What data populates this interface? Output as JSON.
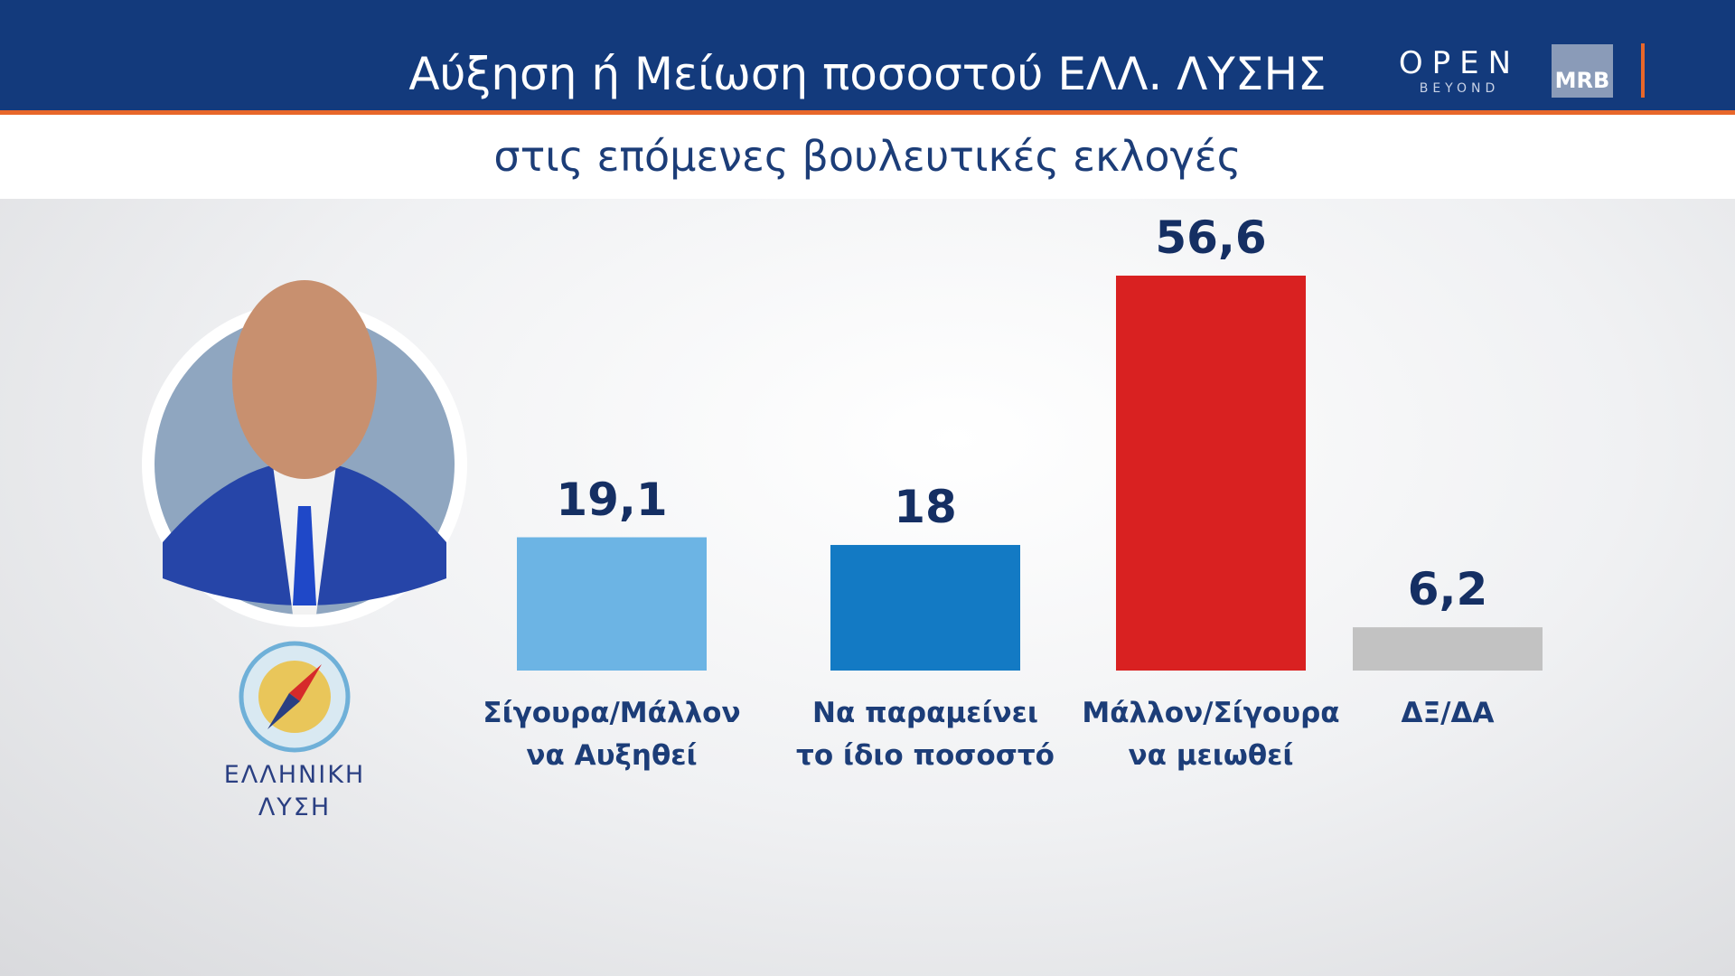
{
  "chart_data": {
    "type": "bar",
    "title": "Αύξηση ή Μείωση ποσοστού ΕΛΛ. ΛΥΣΗΣ",
    "subtitle": "στις επόμενες βουλευτικές εκλογές",
    "categories": [
      "Σίγουρα/Μάλλον\nνα Αυξηθεί",
      "Να παραμείνει\nτο ίδιο ποσοστό",
      "Μάλλον/Σίγουρα\nνα μειωθεί",
      "ΔΞ/ΔΑ"
    ],
    "values": [
      19.1,
      18,
      56.6,
      6.2
    ],
    "value_labels": [
      "19,1",
      "18",
      "56,6",
      "6,2"
    ],
    "colors": [
      "#6cb4e4",
      "#137ac4",
      "#d92121",
      "#c2c2c2"
    ]
  },
  "logos": {
    "open": "OPEN",
    "beyond": "BEYOND",
    "mrb": "MRB",
    "party": "ΕΛΛΗΝΙΚΗ\nΛΥΣΗ"
  }
}
